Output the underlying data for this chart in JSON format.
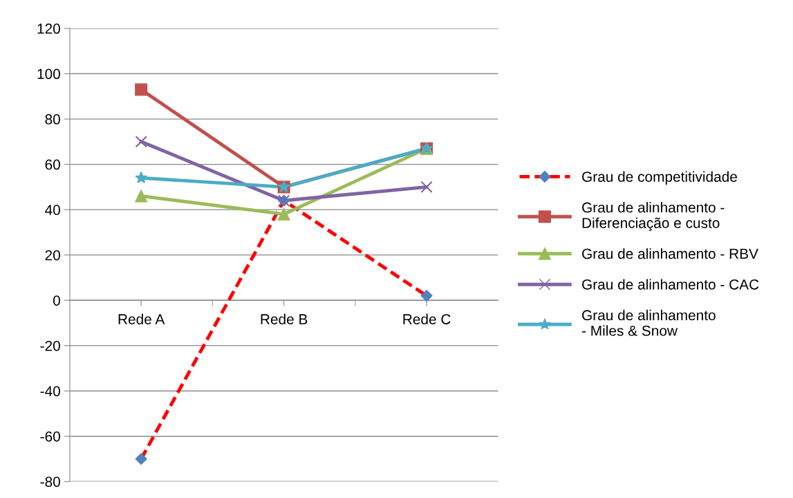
{
  "chart_data": {
    "type": "line",
    "categories": [
      "Rede A",
      "Rede B",
      "Rede C"
    ],
    "ylim": [
      -80,
      120
    ],
    "yticks": [
      -80,
      -60,
      -40,
      -20,
      0,
      20,
      40,
      60,
      80,
      100,
      120
    ],
    "grid": "y",
    "legend": "right",
    "series": [
      {
        "name": "Grau de competitividade",
        "color": "#ff0000",
        "colors": [
          "#4f81bd",
          "#4f81bd",
          "#4f81bd"
        ],
        "marker": "diamond",
        "line_style": "dashed",
        "values": [
          -70,
          44,
          2
        ]
      },
      {
        "name": "Grau de alinhamento -\nDiferenciação e custo",
        "color": "#c0504d",
        "marker": "square",
        "line_style": "solid",
        "values": [
          93,
          50,
          67
        ]
      },
      {
        "name": "Grau de alinhamento - RBV",
        "color": "#9bbb59",
        "marker": "triangle",
        "line_style": "solid",
        "values": [
          46,
          38,
          67
        ]
      },
      {
        "name": "Grau de alinhamento - CAC",
        "color": "#8064a2",
        "marker": "cross",
        "line_style": "solid",
        "values": [
          70,
          44,
          50
        ]
      },
      {
        "name": "Grau de alinhamento\n- Miles & Snow",
        "color": "#4bacc6",
        "marker": "star",
        "line_style": "solid",
        "values": [
          54,
          50,
          67
        ]
      }
    ]
  }
}
